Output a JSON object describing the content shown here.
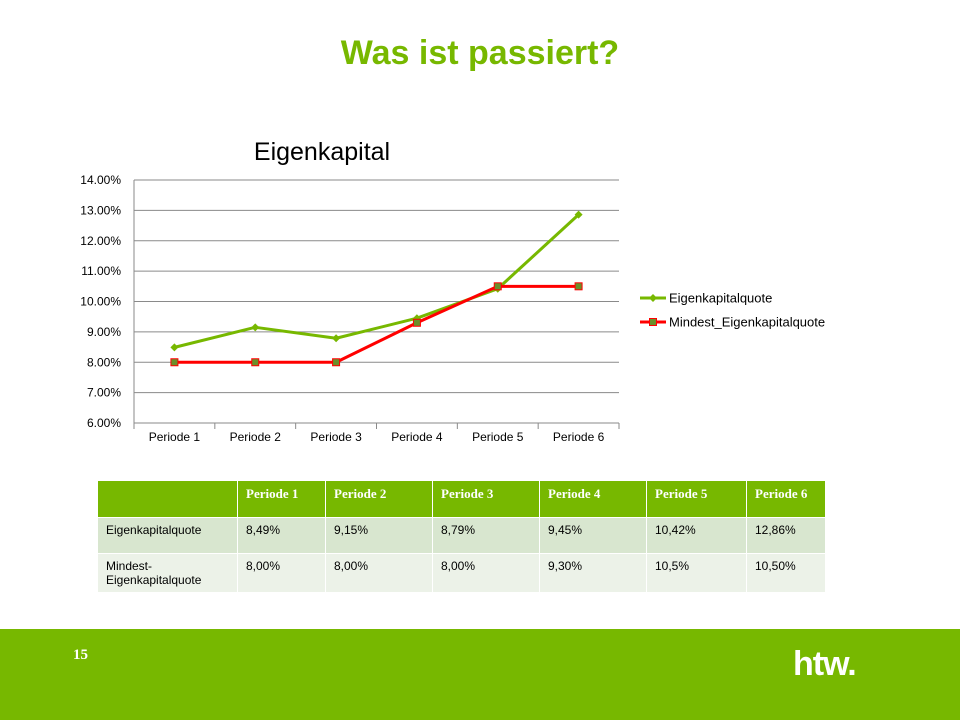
{
  "slide": {
    "title": "Was ist passiert?",
    "page_number": "15",
    "logo_text": "htw."
  },
  "colors": {
    "accent": "#77b800",
    "series1": "#77b800",
    "series2": "#ff0000",
    "marker2_fill": "#6a8f2a"
  },
  "chart_data": {
    "type": "line",
    "title": "Eigenkapital",
    "categories": [
      "Periode 1",
      "Periode 2",
      "Periode 3",
      "Periode 4",
      "Periode 5",
      "Periode 6"
    ],
    "series": [
      {
        "name": "Eigenkapitalquote",
        "values": [
          8.49,
          9.15,
          8.79,
          9.45,
          10.42,
          12.86
        ],
        "color": "#77b800",
        "marker": "diamond"
      },
      {
        "name": "Mindest_Eigenkapitalquote",
        "values": [
          8.0,
          8.0,
          8.0,
          9.3,
          10.5,
          10.5
        ],
        "color": "#ff0000",
        "marker": "square"
      }
    ],
    "ylim": [
      6,
      14
    ],
    "yticks": [
      6,
      7,
      8,
      9,
      10,
      11,
      12,
      13,
      14
    ],
    "ytick_labels": [
      "6.00%",
      "7.00%",
      "8.00%",
      "9.00%",
      "10.00%",
      "11.00%",
      "12.00%",
      "13.00%",
      "14.00%"
    ],
    "grid": true,
    "legend": "right",
    "xlabel": "",
    "ylabel": ""
  },
  "table": {
    "headers": [
      "",
      "Periode 1",
      "Periode 2",
      "Periode 3",
      "Periode 4",
      "Periode 5",
      "Periode 6"
    ],
    "rows": [
      [
        "Eigenkapitalquote",
        "8,49%",
        "9,15%",
        "8,79%",
        "9,45%",
        "10,42%",
        "12,86%"
      ],
      [
        "Mindest-Eigenkapitalquote",
        "8,00%",
        "8,00%",
        "8,00%",
        "9,30%",
        "10,5%",
        "10,50%"
      ]
    ]
  }
}
